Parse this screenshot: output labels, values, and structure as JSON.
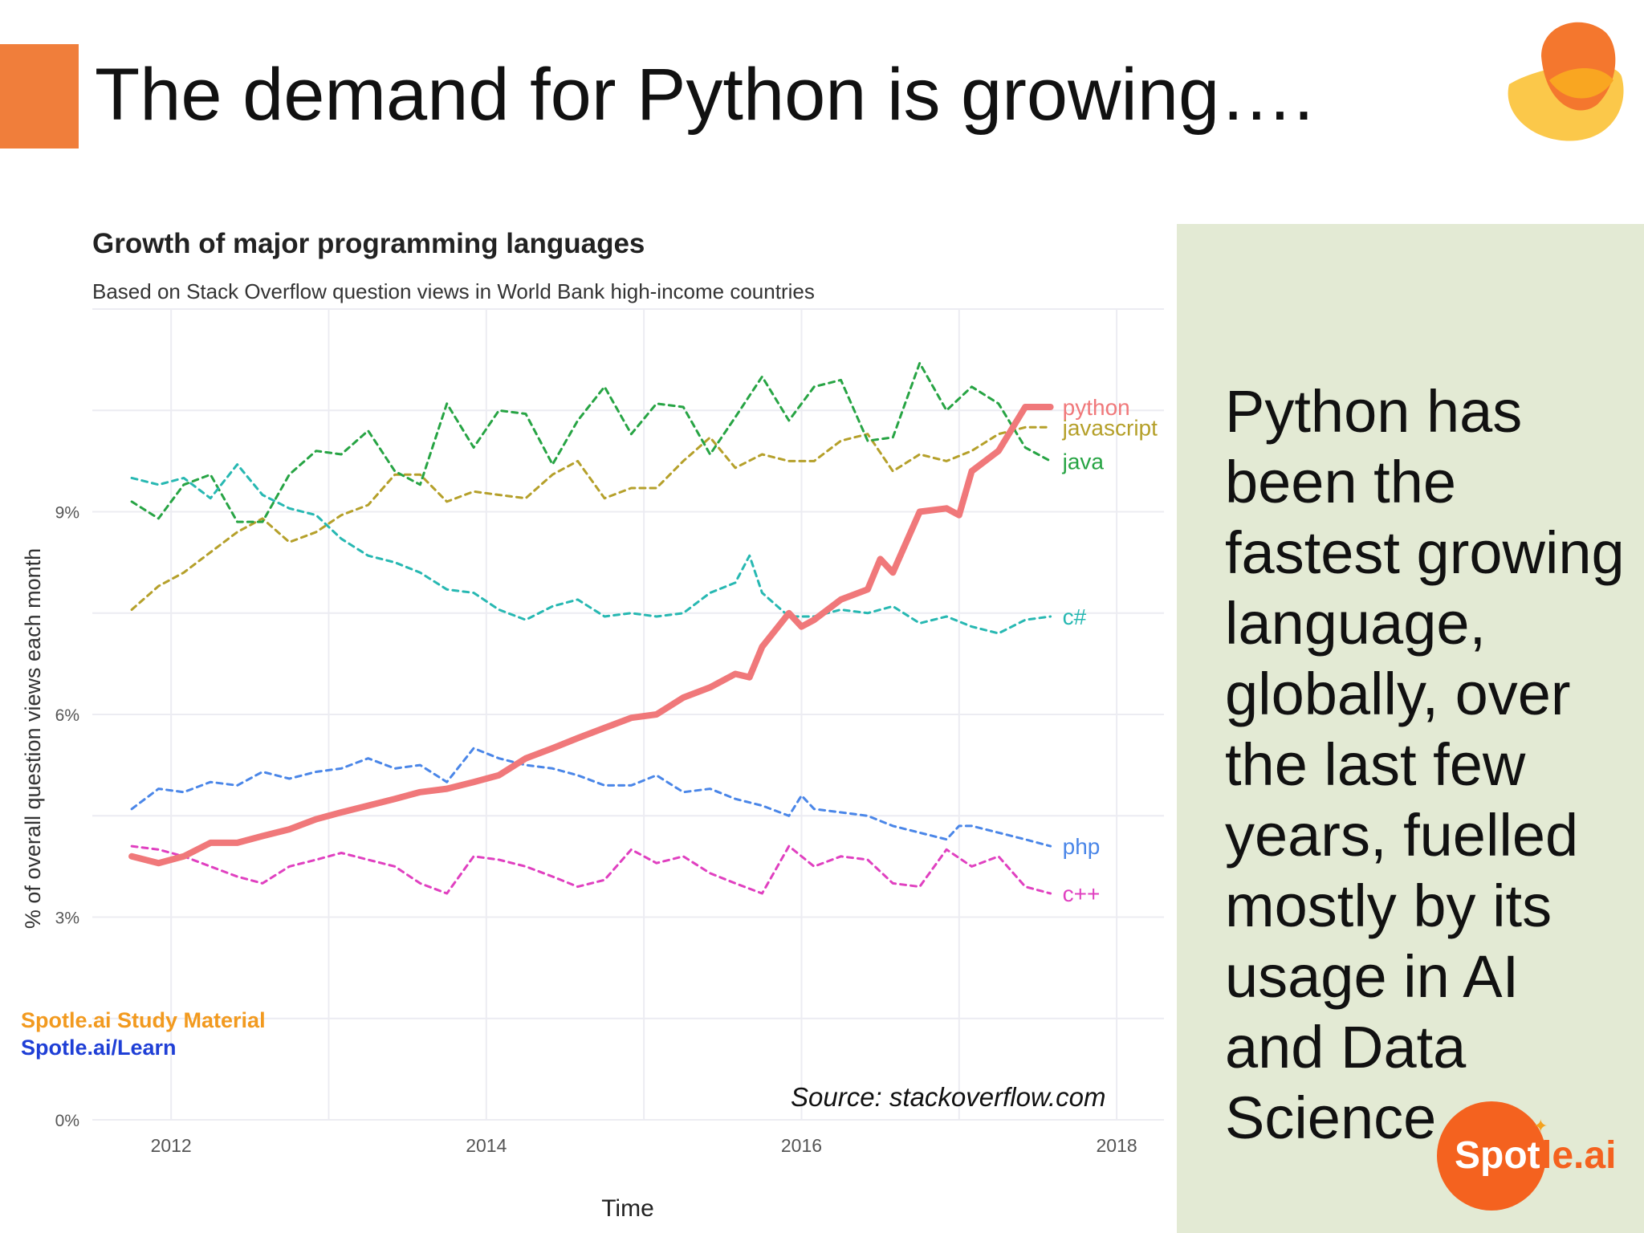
{
  "slide": {
    "title": "The demand for Python is growing….",
    "panel_text": "Python has been the fastest growing language, globally, over the last few years, fuelled mostly by its usage in AI and Data Science",
    "watermark_line1": "Spotle.ai Study Material",
    "watermark_line2": "Spotle.ai/Learn",
    "source": "Source: stackoverflow.com",
    "logo_text_1": "Spot",
    "logo_text_2": "le.ai",
    "colors": {
      "accent_orange": "#f07e3b",
      "panel_green": "#e3ead4",
      "watermark_orange": "#f29a1f",
      "watermark_blue": "#1f3fd6"
    }
  },
  "chart_data": {
    "type": "line",
    "title": "Growth of major programming languages",
    "subtitle": "Based on Stack Overflow question views in World Bank high-income countries",
    "xlabel": "Time",
    "ylabel": "% of overall question views each month",
    "xlim": [
      2011.5,
      2018.3
    ],
    "ylim": [
      0,
      12
    ],
    "x_ticks": [
      2012,
      2014,
      2016,
      2018
    ],
    "x_tick_labels": [
      "2012",
      "2014",
      "2016",
      "2018"
    ],
    "y_ticks": [
      0,
      3,
      6,
      9
    ],
    "y_tick_labels": [
      "0%",
      "3%",
      "6%",
      "9%"
    ],
    "grid": true,
    "series": [
      {
        "name": "python",
        "label": "python",
        "color": "#f0787a",
        "dash": "solid",
        "width": 8,
        "points": [
          [
            2011.75,
            3.9
          ],
          [
            2011.92,
            3.8
          ],
          [
            2012.08,
            3.9
          ],
          [
            2012.25,
            4.1
          ],
          [
            2012.42,
            4.1
          ],
          [
            2012.58,
            4.2
          ],
          [
            2012.75,
            4.3
          ],
          [
            2012.92,
            4.45
          ],
          [
            2013.08,
            4.55
          ],
          [
            2013.25,
            4.65
          ],
          [
            2013.42,
            4.75
          ],
          [
            2013.58,
            4.85
          ],
          [
            2013.75,
            4.9
          ],
          [
            2013.92,
            5.0
          ],
          [
            2014.08,
            5.1
          ],
          [
            2014.25,
            5.35
          ],
          [
            2014.42,
            5.5
          ],
          [
            2014.58,
            5.65
          ],
          [
            2014.75,
            5.8
          ],
          [
            2014.92,
            5.95
          ],
          [
            2015.08,
            6.0
          ],
          [
            2015.25,
            6.25
          ],
          [
            2015.42,
            6.4
          ],
          [
            2015.58,
            6.6
          ],
          [
            2015.67,
            6.55
          ],
          [
            2015.75,
            7.0
          ],
          [
            2015.92,
            7.5
          ],
          [
            2016.0,
            7.3
          ],
          [
            2016.08,
            7.4
          ],
          [
            2016.25,
            7.7
          ],
          [
            2016.42,
            7.85
          ],
          [
            2016.5,
            8.3
          ],
          [
            2016.58,
            8.1
          ],
          [
            2016.75,
            9.0
          ],
          [
            2016.92,
            9.05
          ],
          [
            2017.0,
            8.95
          ],
          [
            2017.08,
            9.6
          ],
          [
            2017.25,
            9.9
          ],
          [
            2017.42,
            10.55
          ],
          [
            2017.58,
            10.55
          ]
        ]
      },
      {
        "name": "javascript",
        "label": "javascript",
        "color": "#b5a02a",
        "dash": "dashed",
        "width": 3,
        "points": [
          [
            2011.75,
            7.55
          ],
          [
            2011.92,
            7.9
          ],
          [
            2012.08,
            8.1
          ],
          [
            2012.25,
            8.4
          ],
          [
            2012.42,
            8.7
          ],
          [
            2012.58,
            8.9
          ],
          [
            2012.75,
            8.55
          ],
          [
            2012.92,
            8.7
          ],
          [
            2013.08,
            8.95
          ],
          [
            2013.25,
            9.1
          ],
          [
            2013.42,
            9.55
          ],
          [
            2013.58,
            9.55
          ],
          [
            2013.75,
            9.15
          ],
          [
            2013.92,
            9.3
          ],
          [
            2014.08,
            9.25
          ],
          [
            2014.25,
            9.2
          ],
          [
            2014.42,
            9.55
          ],
          [
            2014.58,
            9.75
          ],
          [
            2014.75,
            9.2
          ],
          [
            2014.92,
            9.35
          ],
          [
            2015.08,
            9.35
          ],
          [
            2015.25,
            9.75
          ],
          [
            2015.42,
            10.1
          ],
          [
            2015.58,
            9.65
          ],
          [
            2015.75,
            9.85
          ],
          [
            2015.92,
            9.75
          ],
          [
            2016.08,
            9.75
          ],
          [
            2016.25,
            10.05
          ],
          [
            2016.42,
            10.15
          ],
          [
            2016.58,
            9.6
          ],
          [
            2016.75,
            9.85
          ],
          [
            2016.92,
            9.75
          ],
          [
            2017.08,
            9.9
          ],
          [
            2017.25,
            10.15
          ],
          [
            2017.42,
            10.25
          ],
          [
            2017.58,
            10.25
          ]
        ]
      },
      {
        "name": "java",
        "label": "java",
        "color": "#27a444",
        "dash": "dashed",
        "width": 3,
        "points": [
          [
            2011.75,
            9.15
          ],
          [
            2011.92,
            8.9
          ],
          [
            2012.08,
            9.4
          ],
          [
            2012.25,
            9.55
          ],
          [
            2012.42,
            8.85
          ],
          [
            2012.58,
            8.85
          ],
          [
            2012.75,
            9.55
          ],
          [
            2012.92,
            9.9
          ],
          [
            2013.08,
            9.85
          ],
          [
            2013.25,
            10.2
          ],
          [
            2013.42,
            9.6
          ],
          [
            2013.58,
            9.4
          ],
          [
            2013.75,
            10.6
          ],
          [
            2013.92,
            9.95
          ],
          [
            2014.08,
            10.5
          ],
          [
            2014.25,
            10.45
          ],
          [
            2014.42,
            9.7
          ],
          [
            2014.58,
            10.35
          ],
          [
            2014.75,
            10.85
          ],
          [
            2014.92,
            10.15
          ],
          [
            2015.08,
            10.6
          ],
          [
            2015.25,
            10.55
          ],
          [
            2015.42,
            9.85
          ],
          [
            2015.58,
            10.4
          ],
          [
            2015.75,
            11.0
          ],
          [
            2015.92,
            10.35
          ],
          [
            2016.08,
            10.85
          ],
          [
            2016.25,
            10.95
          ],
          [
            2016.42,
            10.05
          ],
          [
            2016.58,
            10.1
          ],
          [
            2016.75,
            11.2
          ],
          [
            2016.92,
            10.5
          ],
          [
            2017.08,
            10.85
          ],
          [
            2017.25,
            10.6
          ],
          [
            2017.42,
            9.95
          ],
          [
            2017.58,
            9.75
          ]
        ]
      },
      {
        "name": "c#",
        "label": "c#",
        "color": "#27b8b2",
        "dash": "dashed",
        "width": 3,
        "points": [
          [
            2011.75,
            9.5
          ],
          [
            2011.92,
            9.4
          ],
          [
            2012.08,
            9.5
          ],
          [
            2012.25,
            9.2
          ],
          [
            2012.42,
            9.7
          ],
          [
            2012.58,
            9.25
          ],
          [
            2012.75,
            9.05
          ],
          [
            2012.92,
            8.95
          ],
          [
            2013.08,
            8.6
          ],
          [
            2013.25,
            8.35
          ],
          [
            2013.42,
            8.25
          ],
          [
            2013.58,
            8.1
          ],
          [
            2013.75,
            7.85
          ],
          [
            2013.92,
            7.8
          ],
          [
            2014.08,
            7.55
          ],
          [
            2014.25,
            7.4
          ],
          [
            2014.42,
            7.6
          ],
          [
            2014.58,
            7.7
          ],
          [
            2014.75,
            7.45
          ],
          [
            2014.92,
            7.5
          ],
          [
            2015.08,
            7.45
          ],
          [
            2015.25,
            7.5
          ],
          [
            2015.42,
            7.8
          ],
          [
            2015.58,
            7.95
          ],
          [
            2015.67,
            8.35
          ],
          [
            2015.75,
            7.8
          ],
          [
            2015.92,
            7.45
          ],
          [
            2016.08,
            7.45
          ],
          [
            2016.25,
            7.55
          ],
          [
            2016.42,
            7.5
          ],
          [
            2016.58,
            7.6
          ],
          [
            2016.75,
            7.35
          ],
          [
            2016.92,
            7.45
          ],
          [
            2017.08,
            7.3
          ],
          [
            2017.25,
            7.2
          ],
          [
            2017.42,
            7.4
          ],
          [
            2017.58,
            7.45
          ]
        ]
      },
      {
        "name": "php",
        "label": "php",
        "color": "#4a86e8",
        "dash": "dashed",
        "width": 3,
        "points": [
          [
            2011.75,
            4.6
          ],
          [
            2011.92,
            4.9
          ],
          [
            2012.08,
            4.85
          ],
          [
            2012.25,
            5.0
          ],
          [
            2012.42,
            4.95
          ],
          [
            2012.58,
            5.15
          ],
          [
            2012.75,
            5.05
          ],
          [
            2012.92,
            5.15
          ],
          [
            2013.08,
            5.2
          ],
          [
            2013.25,
            5.35
          ],
          [
            2013.42,
            5.2
          ],
          [
            2013.58,
            5.25
          ],
          [
            2013.75,
            5.0
          ],
          [
            2013.92,
            5.5
          ],
          [
            2014.08,
            5.35
          ],
          [
            2014.25,
            5.25
          ],
          [
            2014.42,
            5.2
          ],
          [
            2014.58,
            5.1
          ],
          [
            2014.75,
            4.95
          ],
          [
            2014.92,
            4.95
          ],
          [
            2015.08,
            5.1
          ],
          [
            2015.25,
            4.85
          ],
          [
            2015.42,
            4.9
          ],
          [
            2015.58,
            4.75
          ],
          [
            2015.75,
            4.65
          ],
          [
            2015.92,
            4.5
          ],
          [
            2016.0,
            4.8
          ],
          [
            2016.08,
            4.6
          ],
          [
            2016.25,
            4.55
          ],
          [
            2016.42,
            4.5
          ],
          [
            2016.58,
            4.35
          ],
          [
            2016.75,
            4.25
          ],
          [
            2016.92,
            4.15
          ],
          [
            2017.0,
            4.35
          ],
          [
            2017.08,
            4.35
          ],
          [
            2017.25,
            4.25
          ],
          [
            2017.42,
            4.15
          ],
          [
            2017.58,
            4.05
          ]
        ]
      },
      {
        "name": "c++",
        "label": "c++",
        "color": "#e040c0",
        "dash": "dashed",
        "width": 3,
        "points": [
          [
            2011.75,
            4.05
          ],
          [
            2011.92,
            4.0
          ],
          [
            2012.08,
            3.9
          ],
          [
            2012.25,
            3.75
          ],
          [
            2012.42,
            3.6
          ],
          [
            2012.58,
            3.5
          ],
          [
            2012.75,
            3.75
          ],
          [
            2012.92,
            3.85
          ],
          [
            2013.08,
            3.95
          ],
          [
            2013.25,
            3.85
          ],
          [
            2013.42,
            3.75
          ],
          [
            2013.58,
            3.5
          ],
          [
            2013.75,
            3.35
          ],
          [
            2013.92,
            3.9
          ],
          [
            2014.08,
            3.85
          ],
          [
            2014.25,
            3.75
          ],
          [
            2014.42,
            3.6
          ],
          [
            2014.58,
            3.45
          ],
          [
            2014.75,
            3.55
          ],
          [
            2014.92,
            4.0
          ],
          [
            2015.08,
            3.8
          ],
          [
            2015.25,
            3.9
          ],
          [
            2015.42,
            3.65
          ],
          [
            2015.58,
            3.5
          ],
          [
            2015.75,
            3.35
          ],
          [
            2015.92,
            4.05
          ],
          [
            2016.08,
            3.75
          ],
          [
            2016.25,
            3.9
          ],
          [
            2016.42,
            3.85
          ],
          [
            2016.58,
            3.5
          ],
          [
            2016.75,
            3.45
          ],
          [
            2016.92,
            4.0
          ],
          [
            2017.08,
            3.75
          ],
          [
            2017.25,
            3.9
          ],
          [
            2017.42,
            3.45
          ],
          [
            2017.58,
            3.35
          ]
        ]
      }
    ]
  }
}
